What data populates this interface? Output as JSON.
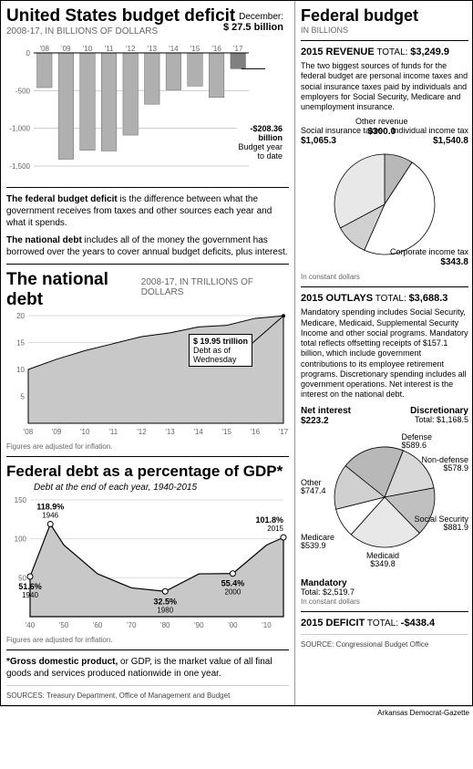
{
  "left": {
    "deficit": {
      "title": "United States budget deficit",
      "subtitle": "2008-17, IN BILLIONS OF DOLLARS",
      "dec_label": "December:",
      "dec_value": "$ 27.5 billion",
      "years": [
        "'08",
        "'09",
        "'10",
        "'11",
        "'12",
        "'13",
        "'14",
        "'15",
        "'16",
        "'17"
      ],
      "values": [
        -460,
        -1410,
        -1290,
        -1300,
        -1090,
        -680,
        -490,
        -440,
        -590,
        -210
      ],
      "ylim": [
        -1500,
        0
      ],
      "yticks": [
        0,
        -500,
        -1000,
        -1500
      ],
      "bar_color": "#b0b0b0",
      "bar17_color": "#808080",
      "grid_color": "#cccccc",
      "callout_value": "-$208.36",
      "callout_unit": "billion",
      "callout_note1": "Budget year",
      "callout_note2": "to date",
      "note1_bold": "The federal budget deficit",
      "note1_rest": " is the difference between what the government receives from taxes and other sources each year and what it spends.",
      "note2_bold": "The national debt",
      "note2_rest": " includes all of the money the government has borrowed over the years to cover annual budget deficits, plus interest."
    },
    "debt": {
      "title": "The national debt",
      "subtitle": "2008-17, IN TRILLIONS OF DOLLARS",
      "years": [
        "'08",
        "'09",
        "'10",
        "'11",
        "'12",
        "'13",
        "'14",
        "'15",
        "'16",
        "'17"
      ],
      "values": [
        10.0,
        11.9,
        13.5,
        14.8,
        16.1,
        16.8,
        17.9,
        18.2,
        19.5,
        19.95
      ],
      "ylim": [
        0,
        20
      ],
      "yticks": [
        5,
        10,
        15,
        20
      ],
      "area_color": "#c8c8c8",
      "line_color": "#000000",
      "callout_value": "$ 19.95 trillion",
      "callout_note1": "Debt as of",
      "callout_note2": "Wednesday",
      "footnote": "Figures are adjusted for inflation."
    },
    "gdp": {
      "title": "Federal debt as a percentage of GDP*",
      "subtitle": "Debt at the end of each year, 1940-2015",
      "xticks": [
        "'40",
        "'50",
        "'60",
        "'70",
        "'80",
        "'90",
        "'00",
        "'10"
      ],
      "ylim": [
        0,
        150
      ],
      "yticks": [
        50,
        100,
        150
      ],
      "area_color": "#c8c8c8",
      "line_color": "#000000",
      "points": [
        {
          "year": 1940,
          "val": 51.6
        },
        {
          "year": 1946,
          "val": 118.9
        },
        {
          "year": 1950,
          "val": 92
        },
        {
          "year": 1960,
          "val": 55
        },
        {
          "year": 1970,
          "val": 37
        },
        {
          "year": 1980,
          "val": 32.5
        },
        {
          "year": 1990,
          "val": 55
        },
        {
          "year": 2000,
          "val": 55.4
        },
        {
          "year": 2010,
          "val": 92
        },
        {
          "year": 2015,
          "val": 101.8
        }
      ],
      "markers": [
        {
          "year": 1940,
          "val": 51.6,
          "label": "51.6%",
          "yr": "1940"
        },
        {
          "year": 1946,
          "val": 118.9,
          "label": "118.9%",
          "yr": "1946"
        },
        {
          "year": 1980,
          "val": 32.5,
          "label": "32.5%",
          "yr": "1980"
        },
        {
          "year": 2000,
          "val": 55.4,
          "label": "55.4%",
          "yr": "2000"
        },
        {
          "year": 2015,
          "val": 101.8,
          "label": "101.8%",
          "yr": "2015"
        }
      ],
      "footnote": "Figures are adjusted for inflation.",
      "gdp_note_bold": "*Gross domestic product,",
      "gdp_note_rest": " or GDP, is the market value of all final goods and services produced nationwide in one year.",
      "sources": "SOURCES: Treasury Department, Office of Management and Budget"
    }
  },
  "right": {
    "title": "Federal budget",
    "subtitle": "IN BILLIONS",
    "revenue": {
      "header_label": "2015 REVENUE",
      "header_total": "TOTAL:",
      "header_value": "$3,249.9",
      "body": "The two biggest sources of funds for the federal budget are personal income taxes and social insurance taxes paid by individuals and employers for Social Security, Medicare and unemployment insurance.",
      "slices": [
        {
          "label": "Individual income tax",
          "value": "$1,540.8",
          "color": "#ffffff",
          "angle": 170.7
        },
        {
          "label": "Corporate income tax",
          "value": "$343.8",
          "color": "#d0d0d0",
          "angle": 38.1
        },
        {
          "label": "Social insurance taxes",
          "value": "$1,065.3",
          "color": "#e8e8e8",
          "angle": 118.0
        },
        {
          "label": "Other revenue",
          "value": "$300.0",
          "color": "#b8b8b8",
          "angle": 33.2
        }
      ],
      "foot": "In constant dollars"
    },
    "outlays": {
      "header_label": "2015 OUTLAYS",
      "header_total": "TOTAL:",
      "header_value": "$3,688.3",
      "body": "Mandatory spending includes Social Security, Medicare, Medicaid, Supplemental Security Income and other social programs. Mandatory total reflects offsetting receipts of $157.1 billion, which include government contributions to its employee retirement programs. Discretionary spending includes all government operations. Net interest is the interest on the national debt.",
      "discretionary_label": "Discretionary",
      "discretionary_total": "Total: $1,168.5",
      "mandatory_label": "Mandatory",
      "mandatory_total": "Total: $2,519.7",
      "slices": [
        {
          "label": "Defense",
          "value": "$589.6",
          "color": "#d8d8d8"
        },
        {
          "label": "Non-defense",
          "value": "$578.9",
          "color": "#c0c0c0"
        },
        {
          "label": "Social Security",
          "value": "$881.9",
          "color": "#e8e8e8"
        },
        {
          "label": "Medicaid",
          "value": "$349.8",
          "color": "#ffffff"
        },
        {
          "label": "Medicare",
          "value": "$539.9",
          "color": "#d0d0d0"
        },
        {
          "label": "Other",
          "value": "$747.4",
          "color": "#b8b8b8"
        },
        {
          "label": "Net interest",
          "value": "$223.2",
          "color": "#404040"
        }
      ],
      "foot": "In constant dollars"
    },
    "deficit": {
      "header_label": "2015 DEFICIT",
      "header_total": "TOTAL:",
      "header_value": "-$438.4"
    },
    "source": "SOURCE: Congressional Budget Office"
  },
  "credit": "Arkansas Democrat-Gazette"
}
